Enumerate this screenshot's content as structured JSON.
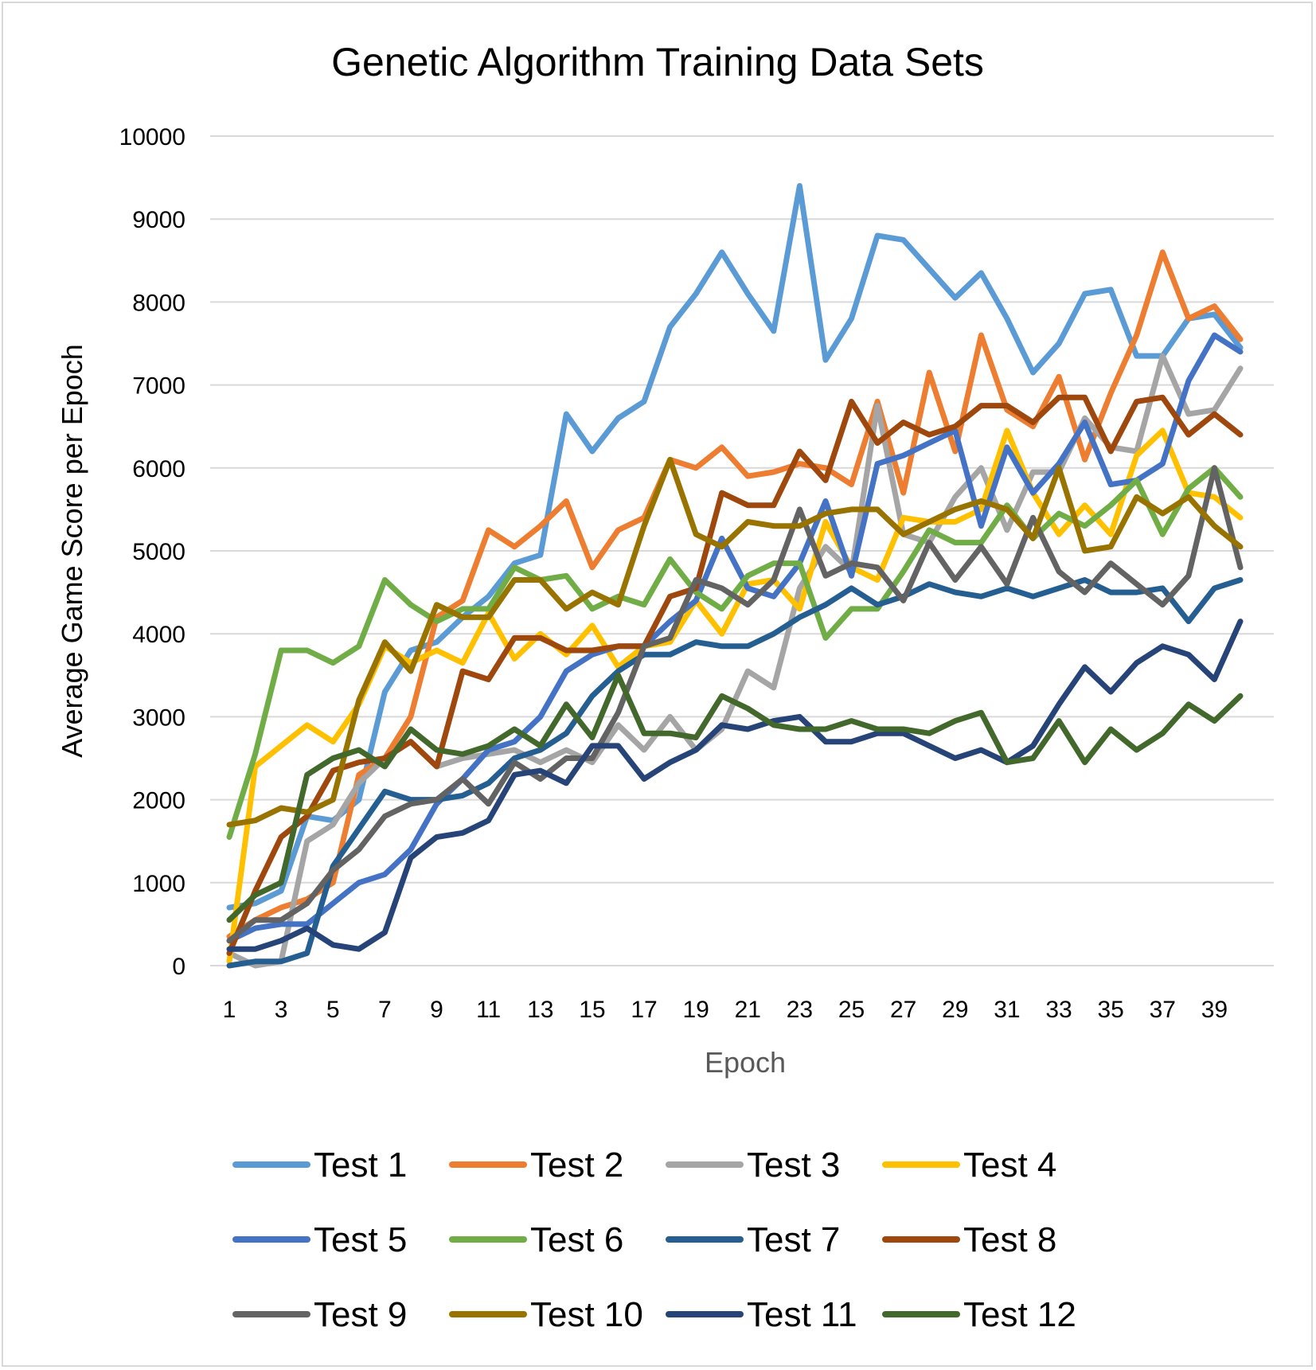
{
  "chart_data": {
    "type": "line",
    "title": "Genetic Algorithm Training Data Sets",
    "xlabel": "Epoch",
    "ylabel": "Average Game Score per Epoch",
    "ylim": [
      0,
      10000
    ],
    "yticks": [
      0,
      1000,
      2000,
      3000,
      4000,
      5000,
      6000,
      7000,
      8000,
      9000,
      10000
    ],
    "x": [
      1,
      2,
      3,
      4,
      5,
      6,
      7,
      8,
      9,
      10,
      11,
      12,
      13,
      14,
      15,
      16,
      17,
      18,
      19,
      20,
      21,
      22,
      23,
      24,
      25,
      26,
      27,
      28,
      29,
      30,
      31,
      32,
      33,
      34,
      35,
      36,
      37,
      38,
      39,
      40
    ],
    "xtick_labels": [
      "1",
      "3",
      "5",
      "7",
      "9",
      "11",
      "13",
      "15",
      "17",
      "19",
      "21",
      "23",
      "25",
      "27",
      "29",
      "31",
      "33",
      "35",
      "37",
      "39"
    ],
    "grid": true,
    "legend_position": "bottom",
    "series": [
      {
        "name": "Test 1",
        "color": "#5b9bd5",
        "values": [
          700,
          750,
          900,
          1800,
          1750,
          2000,
          3300,
          3800,
          3900,
          4200,
          4450,
          4850,
          4950,
          6650,
          6200,
          6600,
          6800,
          7700,
          8100,
          8600,
          8100,
          7650,
          9400,
          7300,
          7800,
          8800,
          8750,
          8400,
          8050,
          8350,
          7800,
          7150,
          7500,
          8100,
          8150,
          7350,
          7350,
          7800,
          7850,
          7450
        ]
      },
      {
        "name": "Test 2",
        "color": "#ed7d31",
        "values": [
          350,
          550,
          700,
          800,
          1000,
          2300,
          2500,
          3000,
          4200,
          4400,
          5250,
          5050,
          5300,
          5600,
          4800,
          5250,
          5400,
          6100,
          6000,
          6250,
          5900,
          5950,
          6050,
          6000,
          5800,
          6800,
          5700,
          7150,
          6200,
          7600,
          6700,
          6500,
          7100,
          6100,
          6900,
          7600,
          8600,
          7800,
          7950,
          7550
        ]
      },
      {
        "name": "Test 3",
        "color": "#a5a5a5",
        "values": [
          150,
          0,
          50,
          1500,
          1700,
          2200,
          2500,
          2700,
          2400,
          2500,
          2550,
          2600,
          2450,
          2600,
          2450,
          2900,
          2600,
          3000,
          2600,
          2850,
          3550,
          3350,
          4550,
          5050,
          4750,
          6750,
          5200,
          5100,
          5650,
          6000,
          5250,
          5950,
          5950,
          6600,
          6250,
          6200,
          7350,
          6650,
          6700,
          7200
        ]
      },
      {
        "name": "Test 4",
        "color": "#ffc000",
        "values": [
          50,
          2400,
          2650,
          2900,
          2700,
          3150,
          3850,
          3650,
          3800,
          3650,
          4250,
          3700,
          4000,
          3750,
          4100,
          3600,
          3850,
          3900,
          4400,
          4000,
          4600,
          4650,
          4300,
          5350,
          4800,
          4650,
          5400,
          5350,
          5350,
          5500,
          6450,
          5700,
          5200,
          5550,
          5200,
          6150,
          6450,
          5700,
          5650,
          5400
        ]
      },
      {
        "name": "Test 5",
        "color": "#4472c4",
        "values": [
          300,
          450,
          500,
          500,
          750,
          1000,
          1100,
          1400,
          1950,
          2250,
          2600,
          2700,
          3000,
          3550,
          3750,
          3850,
          3850,
          4150,
          4400,
          5150,
          4550,
          4450,
          4850,
          5600,
          4700,
          6050,
          6150,
          6300,
          6450,
          5300,
          6250,
          5700,
          6050,
          6550,
          5800,
          5850,
          6050,
          7050,
          7600,
          7400
        ]
      },
      {
        "name": "Test 6",
        "color": "#70ad47",
        "values": [
          1550,
          2550,
          3800,
          3800,
          3650,
          3850,
          4650,
          4350,
          4150,
          4300,
          4300,
          4800,
          4650,
          4700,
          4300,
          4450,
          4350,
          4900,
          4500,
          4300,
          4700,
          4850,
          4850,
          3950,
          4300,
          4300,
          4750,
          5250,
          5100,
          5100,
          5550,
          5150,
          5450,
          5300,
          5550,
          5850,
          5200,
          5750,
          6000,
          5650
        ]
      },
      {
        "name": "Test 7",
        "color": "#255e91",
        "values": [
          0,
          50,
          50,
          150,
          1200,
          1650,
          2100,
          2000,
          2000,
          2050,
          2200,
          2500,
          2600,
          2800,
          3250,
          3550,
          3750,
          3750,
          3900,
          3850,
          3850,
          4000,
          4200,
          4350,
          4550,
          4350,
          4450,
          4600,
          4500,
          4450,
          4550,
          4450,
          4550,
          4650,
          4500,
          4500,
          4550,
          4150,
          4550,
          4650
        ]
      },
      {
        "name": "Test 8",
        "color": "#9e480e",
        "values": [
          150,
          900,
          1550,
          1800,
          2350,
          2450,
          2500,
          2700,
          2400,
          3550,
          3450,
          3950,
          3950,
          3800,
          3800,
          3850,
          3850,
          4450,
          4550,
          5700,
          5550,
          5550,
          6200,
          5850,
          6800,
          6300,
          6550,
          6400,
          6500,
          6750,
          6750,
          6550,
          6850,
          6850,
          6200,
          6800,
          6850,
          6400,
          6650,
          6400
        ]
      },
      {
        "name": "Test 9",
        "color": "#636363",
        "values": [
          300,
          550,
          550,
          750,
          1150,
          1400,
          1800,
          1950,
          2000,
          2250,
          1950,
          2450,
          2250,
          2500,
          2500,
          3050,
          3850,
          3950,
          4650,
          4550,
          4350,
          4650,
          5500,
          4700,
          4850,
          4800,
          4400,
          5100,
          4650,
          5050,
          4600,
          5400,
          4750,
          4500,
          4850,
          4600,
          4350,
          4700,
          6000,
          4800
        ]
      },
      {
        "name": "Test 10",
        "color": "#997300",
        "values": [
          1700,
          1750,
          1900,
          1850,
          2000,
          3200,
          3900,
          3550,
          4350,
          4200,
          4200,
          4650,
          4650,
          4300,
          4500,
          4350,
          5300,
          6100,
          5200,
          5050,
          5350,
          5300,
          5300,
          5450,
          5500,
          5500,
          5200,
          5350,
          5500,
          5600,
          5500,
          5150,
          6000,
          5000,
          5050,
          5650,
          5450,
          5650,
          5300,
          5050
        ]
      },
      {
        "name": "Test 11",
        "color": "#264478",
        "values": [
          200,
          200,
          300,
          450,
          250,
          200,
          400,
          1300,
          1550,
          1600,
          1750,
          2300,
          2350,
          2200,
          2650,
          2650,
          2250,
          2450,
          2600,
          2900,
          2850,
          2950,
          3000,
          2700,
          2700,
          2800,
          2800,
          2650,
          2500,
          2600,
          2450,
          2650,
          3150,
          3600,
          3300,
          3650,
          3850,
          3750,
          3450,
          4150
        ]
      },
      {
        "name": "Test 12",
        "color": "#43682b",
        "values": [
          550,
          850,
          1000,
          2300,
          2500,
          2600,
          2400,
          2850,
          2600,
          2550,
          2650,
          2850,
          2650,
          3150,
          2750,
          3500,
          2800,
          2800,
          2750,
          3250,
          3100,
          2900,
          2850,
          2850,
          2950,
          2850,
          2850,
          2800,
          2950,
          3050,
          2450,
          2500,
          2950,
          2450,
          2850,
          2600,
          2800,
          3150,
          2950,
          3250
        ]
      }
    ]
  }
}
